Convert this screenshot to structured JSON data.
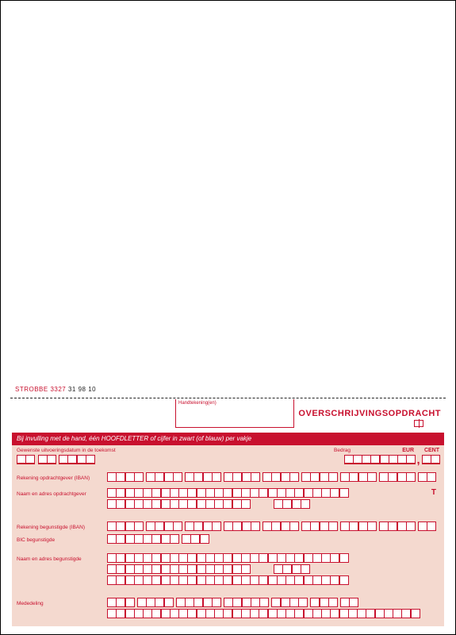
{
  "code": {
    "a": "STROBBE 3327",
    "b": " 31 98 10"
  },
  "sig_label": "Handtekening(en)",
  "title": "OVERSCHRIJVINGSOPDRACHT",
  "banner": "Bij invulling met de hand, één HOOFDLETTER of cijfer in zwart (of blauw) per vakje",
  "labels": {
    "date": "Gewenste uitvoeringsdatum in de toekomst",
    "bedrag": "Bedrag",
    "eur": "EUR",
    "cent": "CENT",
    "rek_opdr": "Rekening opdrachtgever (IBAN)",
    "naam_opdr": "Naam en adres opdrachtgever",
    "rek_begu": "Rekening begunstigde (IBAN)",
    "bic": "BIC begunstigde",
    "naam_begu": "Naam en adres begunstigde",
    "mededeling": "Mededeling"
  },
  "colors": {
    "primary": "#c8102e",
    "panel": "#f4d9cf",
    "page": "#ffffff"
  },
  "layout": {
    "date_groups": [
      2,
      2,
      4
    ],
    "amount_eur": 8,
    "amount_cent": 2,
    "iban_groups": [
      4,
      4,
      4,
      4,
      4,
      4,
      4,
      4,
      2
    ],
    "name_row_len": 27,
    "short_row_len": 16,
    "bic_groups": [
      8,
      3
    ],
    "mede_groups": [
      3,
      4,
      5,
      5,
      4,
      3,
      2,
      27,
      10
    ]
  }
}
